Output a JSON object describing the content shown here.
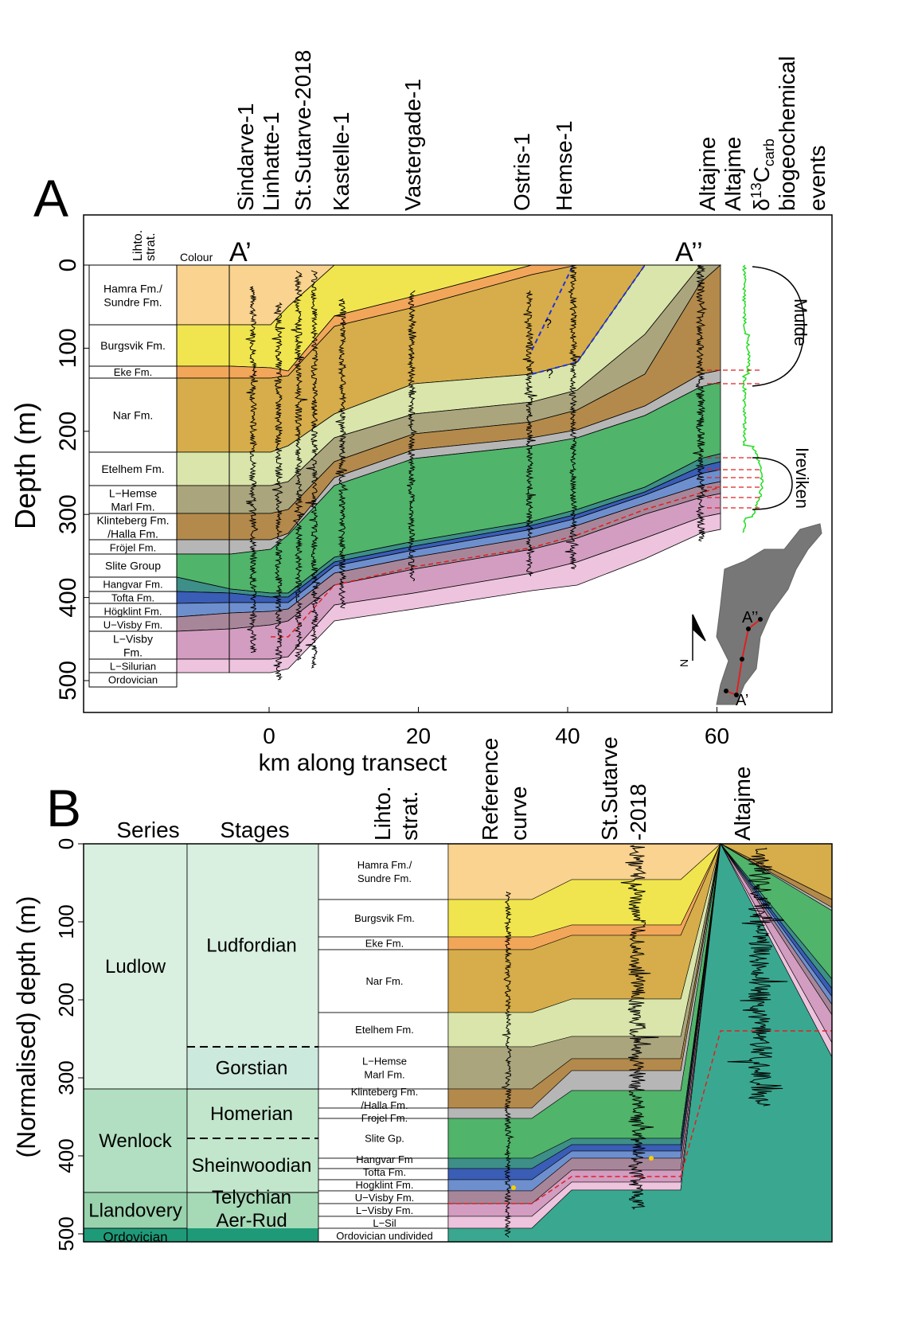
{
  "panel_a": {
    "label": "A",
    "ylabel": "Depth (m)",
    "xlabel": "km along transect",
    "y_ticks": [
      "0",
      "100",
      "200",
      "300",
      "400",
      "500"
    ],
    "x_ticks": [
      "0",
      "20",
      "40",
      "60"
    ],
    "litho_header": [
      "Lihto.",
      "strat."
    ],
    "colour_header": "Colour",
    "section_start": "A’",
    "section_end": "A’’",
    "wells": [
      "Sindarve-1",
      "Linhatte-1",
      "St.Sutarve-2018",
      "Kastelle-1",
      "Vastergade-1",
      "Ostris-1",
      "Hemse-1",
      "Altajme",
      "Altajme"
    ],
    "carbon_header": [
      "δ",
      "13",
      "C",
      "carb"
    ],
    "events_header": [
      "biogeochemical",
      "events"
    ],
    "events": [
      "Mulde",
      "Ireviken"
    ],
    "question_mark": "?",
    "map_labels": {
      "north": "N",
      "end": "A’’",
      "start": "A’"
    },
    "formations": [
      {
        "name": "Hamra Fm./ Sundre Fm.",
        "lines": [
          "Hamra Fm./",
          "Sundre Fm."
        ],
        "color": "#f9d38f"
      },
      {
        "name": "Burgsvik Fm.",
        "lines": [
          "Burgsvik Fm."
        ],
        "color": "#f0e54e"
      },
      {
        "name": "Eke Fm.",
        "lines": [
          "Eke Fm."
        ],
        "color": "#f2a65a"
      },
      {
        "name": "Nar Fm.",
        "lines": [
          "Nar Fm."
        ],
        "color": "#d6ad4a"
      },
      {
        "name": "Etelhem Fm.",
        "lines": [
          "Etelhem Fm."
        ],
        "color": "#d9e5aa"
      },
      {
        "name": "L-Hemse Marl Fm.",
        "lines": [
          "L−Hemse",
          "Marl Fm."
        ],
        "color": "#aaa57d"
      },
      {
        "name": "Klinteberg Fm. /Halla Fm.",
        "lines": [
          "Klinteberg Fm.",
          "/Halla Fm."
        ],
        "color": "#b38a4b"
      },
      {
        "name": "Fröjel Fm.",
        "lines": [
          "Fröjel Fm."
        ],
        "color": "#b6b6b6"
      },
      {
        "name": "Slite Group",
        "lines": [
          "Slite Group"
        ],
        "color": "#50b46a"
      },
      {
        "name": "Hangvar Fm.",
        "lines": [
          "Hangvar Fm."
        ],
        "color": "#3d8f88"
      },
      {
        "name": "Tofta Fm.",
        "lines": [
          "Tofta Fm."
        ],
        "color": "#3a5db6"
      },
      {
        "name": "Högklint Fm.",
        "lines": [
          "Högklint Fm."
        ],
        "color": "#6e8fcd"
      },
      {
        "name": "U-Visby Fm.",
        "lines": [
          "U−Visby Fm."
        ],
        "color": "#a8869a"
      },
      {
        "name": "L-Visby Fm.",
        "lines": [
          "L−Visby",
          "Fm."
        ],
        "color": "#d29dc1"
      },
      {
        "name": "L-Silurian",
        "lines": [
          "L−Silurian"
        ],
        "color": "#edc3dd"
      },
      {
        "name": "Ordovician",
        "lines": [
          "Ordovician"
        ],
        "color": "#ffffff"
      }
    ]
  },
  "panel_b": {
    "label": "B",
    "ylabel": "(Normalised) depth (m)",
    "y_ticks": [
      "0",
      "100",
      "200",
      "300",
      "400",
      "500"
    ],
    "series_header": "Series",
    "stages_header": "Stages",
    "litho_header": [
      "Lihto.",
      "strat."
    ],
    "curve_headers": {
      "reference": [
        "Reference",
        "curve"
      ],
      "sutarve": [
        "St.Sutarve",
        "-2018"
      ],
      "altajme": "Altajme"
    },
    "series": [
      {
        "name": "Ludlow",
        "color": "#d9efe0"
      },
      {
        "name": "Wenlock",
        "color": "#b2dfc2"
      },
      {
        "name": "Llandovery",
        "color": "#99d3ad"
      },
      {
        "name": "Ordovician",
        "color": "#1e9a78"
      }
    ],
    "stages": [
      {
        "name": "Ludfordian",
        "color": "#d9efe0"
      },
      {
        "name": "Gorstian",
        "color": "#cce9dd"
      },
      {
        "name": "Homerian",
        "color": "#c2e6cc"
      },
      {
        "name": "Sheinwoodian",
        "color": "#c2e6cc"
      },
      {
        "name": "Telychian",
        "color": "#a6d9b6"
      },
      {
        "name": "Aer-Rud",
        "color": "#a6d9b6"
      }
    ],
    "formations": [
      {
        "lines": [
          "Hamra Fm./",
          "Sundre Fm."
        ]
      },
      {
        "lines": [
          "Burgsvik Fm."
        ]
      },
      {
        "lines": [
          "Eke Fm."
        ]
      },
      {
        "lines": [
          "Nar Fm."
        ]
      },
      {
        "lines": [
          "Etelhem Fm."
        ]
      },
      {
        "lines": [
          "L−Hemse",
          "Marl Fm."
        ]
      },
      {
        "lines": [
          "Klinteberg Fm.",
          "/Halla Fm."
        ]
      },
      {
        "lines": [
          "Frojel Fm."
        ]
      },
      {
        "lines": [
          "Slite Gp."
        ]
      },
      {
        "lines": [
          "Hangvar Fm"
        ]
      },
      {
        "lines": [
          "Tofta Fm."
        ]
      },
      {
        "lines": [
          "Hogklint Fm."
        ]
      },
      {
        "lines": [
          "U−Visby Fm."
        ]
      },
      {
        "lines": [
          "L−Visby Fm."
        ]
      },
      {
        "lines": [
          "L−Sil"
        ]
      },
      {
        "lines": [
          "Ordovician undivided"
        ]
      }
    ],
    "ordovician_color": "#3aa890"
  }
}
